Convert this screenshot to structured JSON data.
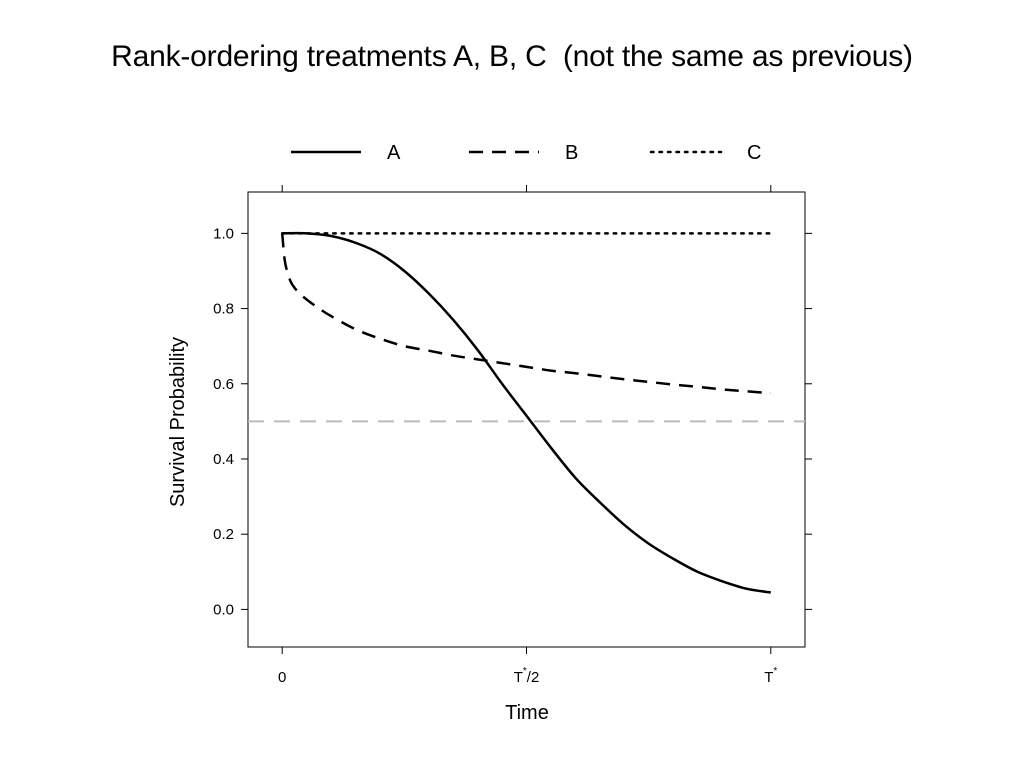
{
  "slide": {
    "title": "Rank-ordering treatments A, B, C  (not the same as previous)"
  },
  "chart_data": {
    "type": "line",
    "title": "Rank-ordering treatments A, B, C  (not the same as previous)",
    "xlabel": "Time",
    "ylabel": "Survival Probability",
    "x_ticks": [
      {
        "value": 0,
        "label": "0",
        "sup": ""
      },
      {
        "value": 0.5,
        "label": "T/2",
        "base": "T",
        "sup": "*",
        "suffix": "/2"
      },
      {
        "value": 1,
        "label": "T*",
        "base": "T",
        "sup": "*",
        "suffix": ""
      }
    ],
    "y_ticks": [
      {
        "value": 0.0,
        "label": "0.0"
      },
      {
        "value": 0.2,
        "label": "0.2"
      },
      {
        "value": 0.4,
        "label": "0.4"
      },
      {
        "value": 0.6,
        "label": "0.6"
      },
      {
        "value": 0.8,
        "label": "0.8"
      },
      {
        "value": 1.0,
        "label": "1.0"
      }
    ],
    "xlim": [
      -0.07,
      1.07
    ],
    "ylim": [
      -0.1,
      1.11
    ],
    "reference_line": {
      "y": 0.5,
      "color": "#bbbbbb",
      "style": "dashed"
    },
    "legend_position": "top",
    "grid": false,
    "series": [
      {
        "name": "A",
        "style": "solid",
        "color": "#000000",
        "x": [
          0,
          0.05,
          0.1,
          0.15,
          0.2,
          0.25,
          0.3,
          0.35,
          0.4,
          0.45,
          0.5,
          0.55,
          0.6,
          0.65,
          0.7,
          0.75,
          0.8,
          0.85,
          0.9,
          0.95,
          1.0
        ],
        "y": [
          1.0,
          1.0,
          0.993,
          0.975,
          0.946,
          0.9,
          0.84,
          0.77,
          0.69,
          0.6,
          0.515,
          0.43,
          0.35,
          0.285,
          0.225,
          0.175,
          0.135,
          0.1,
          0.075,
          0.055,
          0.045
        ]
      },
      {
        "name": "B",
        "style": "dashed",
        "color": "#000000",
        "x": [
          0,
          0.005,
          0.01,
          0.02,
          0.04,
          0.07,
          0.1,
          0.15,
          0.2,
          0.25,
          0.3,
          0.35,
          0.4,
          0.45,
          0.5,
          0.55,
          0.6,
          0.65,
          0.7,
          0.75,
          0.8,
          0.85,
          0.9,
          0.95,
          1.0
        ],
        "y": [
          1.0,
          0.93,
          0.9,
          0.865,
          0.835,
          0.805,
          0.78,
          0.745,
          0.72,
          0.7,
          0.688,
          0.675,
          0.665,
          0.655,
          0.645,
          0.635,
          0.628,
          0.62,
          0.612,
          0.605,
          0.598,
          0.592,
          0.585,
          0.58,
          0.575
        ]
      },
      {
        "name": "C",
        "style": "dotted",
        "color": "#000000",
        "x": [
          0,
          1.0
        ],
        "y": [
          1.0,
          1.0
        ]
      }
    ]
  }
}
